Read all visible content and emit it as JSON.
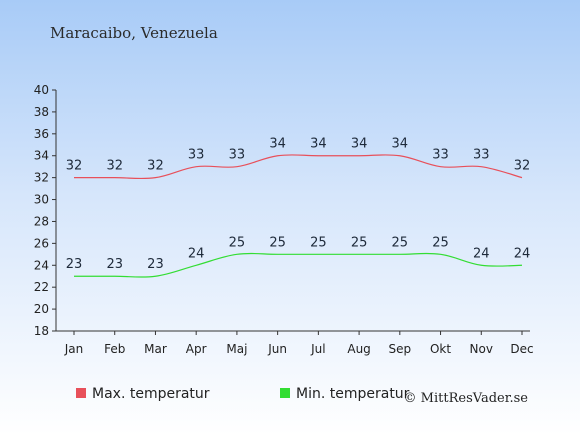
{
  "chart_data": {
    "type": "line",
    "title": "Maracaibo, Venezuela",
    "categories": [
      "Jan",
      "Feb",
      "Mar",
      "Apr",
      "Maj",
      "Jun",
      "Jul",
      "Aug",
      "Sep",
      "Okt",
      "Nov",
      "Dec"
    ],
    "ylim": [
      18,
      40
    ],
    "yticks": [
      18,
      20,
      22,
      24,
      26,
      28,
      30,
      32,
      34,
      36,
      38,
      40
    ],
    "grid": false,
    "legend_position": "bottom-left",
    "series": [
      {
        "name": "Max. temperatur",
        "color": "#e8505a",
        "values": [
          32,
          32,
          32,
          33,
          33,
          34,
          34,
          34,
          34,
          33,
          33,
          32
        ]
      },
      {
        "name": "Min. temperatur",
        "color": "#33dd33",
        "values": [
          23,
          23,
          23,
          24,
          25,
          25,
          25,
          25,
          25,
          25,
          24,
          24
        ]
      }
    ]
  },
  "copyright": "© MittResVader.se"
}
